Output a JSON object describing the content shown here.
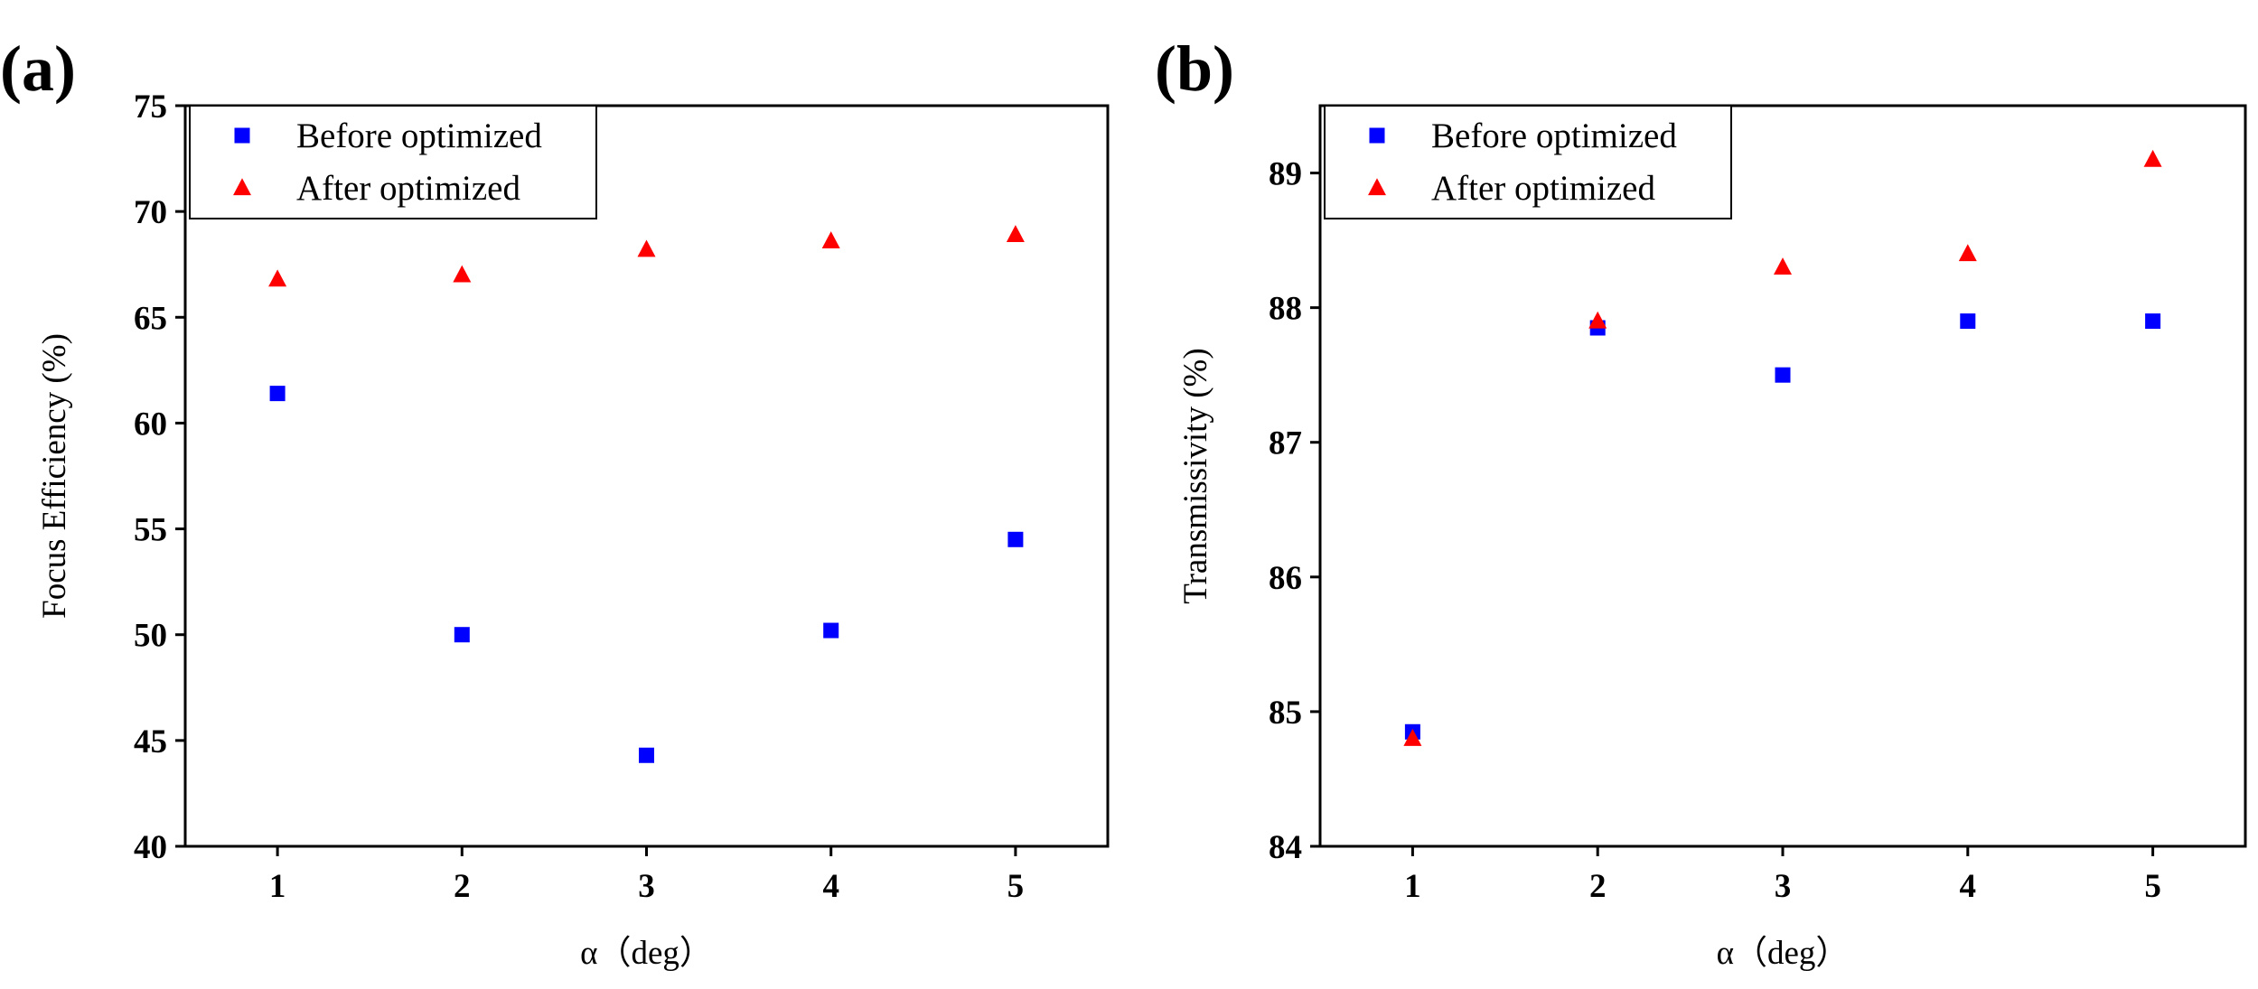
{
  "chart_data": [
    {
      "panel_label": "(a)",
      "type": "scatter",
      "xlabel": "α（deg）",
      "ylabel": "Focus Efficiency (%)",
      "xlim": [
        0.5,
        5.5
      ],
      "ylim": [
        40,
        75
      ],
      "xticks": [
        1,
        2,
        3,
        4,
        5
      ],
      "yticks": [
        40,
        45,
        50,
        55,
        60,
        65,
        70,
        75
      ],
      "legend_position": "top-left",
      "series": [
        {
          "name": "Before optimized",
          "marker": "square",
          "color": "#0000ff",
          "x": [
            1,
            2,
            3,
            4,
            5
          ],
          "y": [
            61.4,
            50.0,
            44.3,
            50.2,
            54.5
          ]
        },
        {
          "name": "After optimized",
          "marker": "triangle",
          "color": "#ff0000",
          "x": [
            1,
            2,
            3,
            4,
            5
          ],
          "y": [
            66.8,
            67.0,
            68.2,
            68.6,
            68.9
          ]
        }
      ]
    },
    {
      "panel_label": "(b)",
      "type": "scatter",
      "xlabel": "α（deg）",
      "ylabel": "Transmissivity (%)",
      "xlim": [
        0.5,
        5.5
      ],
      "ylim": [
        84,
        89.5
      ],
      "xticks": [
        1,
        2,
        3,
        4,
        5
      ],
      "yticks": [
        84,
        85,
        86,
        87,
        88,
        89
      ],
      "legend_position": "top-left",
      "series": [
        {
          "name": "Before optimized",
          "marker": "square",
          "color": "#0000ff",
          "x": [
            1,
            2,
            3,
            4,
            5
          ],
          "y": [
            84.85,
            87.85,
            87.5,
            87.9,
            87.9
          ]
        },
        {
          "name": "After optimized",
          "marker": "triangle",
          "color": "#ff0000",
          "x": [
            1,
            2,
            3,
            4,
            5
          ],
          "y": [
            84.8,
            87.9,
            88.3,
            88.4,
            89.1
          ]
        }
      ]
    }
  ]
}
